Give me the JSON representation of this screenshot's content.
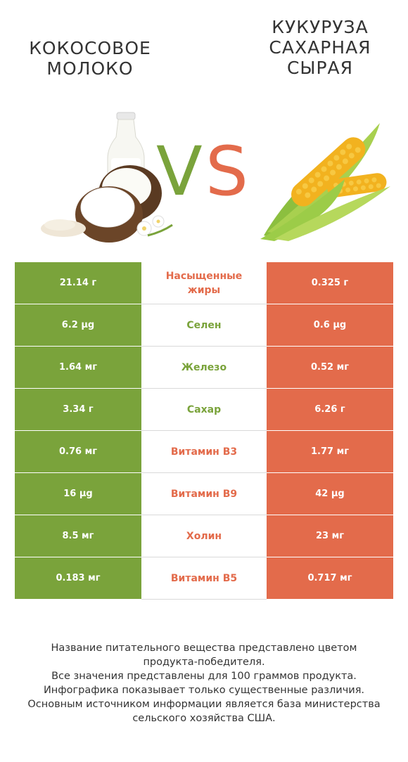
{
  "header": {
    "left_title": "КОКОСОВОЕ\nМОЛОКО",
    "right_title": "КУКУРУЗА\nСАХАРНАЯ\nСЫРАЯ",
    "vs_v": "V",
    "vs_s": "S"
  },
  "colors": {
    "left": "#7aa33b",
    "right": "#e36b4b"
  },
  "images": {
    "left": "coconut-milk-image",
    "right": "corn-image"
  },
  "rows": [
    {
      "left": "21.14 г",
      "label": "Насыщенные жиры",
      "right": "0.325 г",
      "winner": "right"
    },
    {
      "left": "6.2 µg",
      "label": "Селен",
      "right": "0.6 µg",
      "winner": "left"
    },
    {
      "left": "1.64 мг",
      "label": "Железо",
      "right": "0.52 мг",
      "winner": "left"
    },
    {
      "left": "3.34 г",
      "label": "Сахар",
      "right": "6.26 г",
      "winner": "left"
    },
    {
      "left": "0.76 мг",
      "label": "Витамин B3",
      "right": "1.77 мг",
      "winner": "right"
    },
    {
      "left": "16 µg",
      "label": "Витамин B9",
      "right": "42 µg",
      "winner": "right"
    },
    {
      "left": "8.5 мг",
      "label": "Холин",
      "right": "23 мг",
      "winner": "right"
    },
    {
      "left": "0.183 мг",
      "label": "Витамин B5",
      "right": "0.717 мг",
      "winner": "right"
    }
  ],
  "footer": [
    "Название питательного вещества представлено цветом",
    "продукта-победителя.",
    "Все значения представлены для 100 граммов продукта.",
    "Инфографика показывает только существенные различия.",
    "Основным источником информации является база министерства",
    "сельского хозяйства США."
  ]
}
